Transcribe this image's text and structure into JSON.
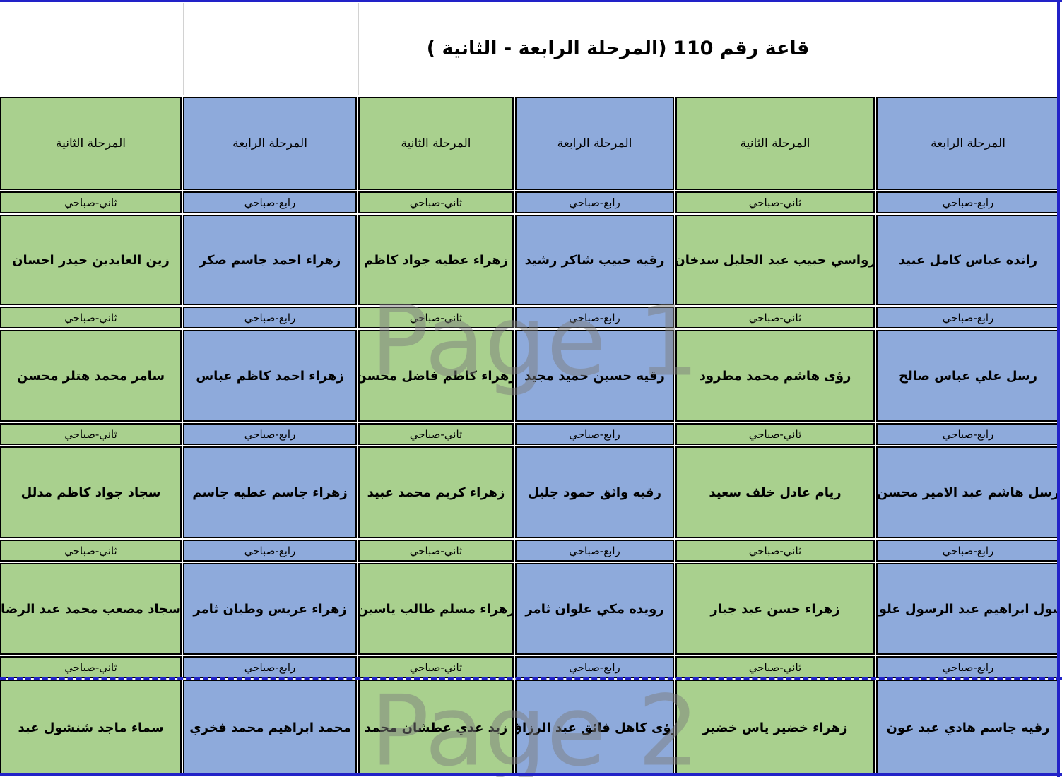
{
  "title": "قاعة رقم 110 (المرحلة الرابعة - الثانية )",
  "watermarks": {
    "page1": "Page 1",
    "page2": "Page 2"
  },
  "colors": {
    "stage2_green": "#A9D08E",
    "stage4_blue": "#8EAADB",
    "page_break_blue": "#2222C8",
    "gridline_gray": "#D2D2D2",
    "cell_border": "#000000"
  },
  "columns": [
    {
      "stage": "المرحلة الثانية",
      "session": "ثاني-صباحي",
      "color": "green",
      "students": [
        "زين العابدين حيدر احسان",
        "سامر محمد هتلر محسن",
        "سجاد جواد كاظم مدلل",
        "سجاد مصعب محمد عبد الرضا",
        "سماء ماجد شنشول عبد"
      ]
    },
    {
      "stage": "المرحلة الرابعة",
      "session": "رابع-صباحي",
      "color": "blue",
      "students": [
        "زهراء احمد جاسم صكر",
        "زهراء احمد كاظم عباس",
        "زهراء جاسم عطيه جاسم",
        "زهراء عريس وطبان ثامر",
        "ء محمد ابراهيم محمد فخري ر"
      ]
    },
    {
      "stage": "المرحلة الثانية",
      "session": "ثاني-صباحي",
      "color": "green",
      "students": [
        "زهراء عطيه جواد كاظم",
        "زهراء كاظم فاضل محسن",
        "زهراء كريم محمد عبيد",
        "زهراء مسلم طالب ياسين",
        "زيد عدي عطشان محمد"
      ]
    },
    {
      "stage": "المرحلة الرابعة",
      "session": "رابع-صباحي",
      "color": "blue",
      "students": [
        "رقيه حبيب شاكر رشيد",
        "رقيه حسين حميد مجيد",
        "رقيه واثق حمود جليل",
        "رويده مكي علوان ثامر",
        "رؤى كاهل فائق عبد الرزاق"
      ]
    },
    {
      "stage": "المرحلة الثانية",
      "session": "ثاني-صباحي",
      "color": "green",
      "students": [
        "رواسي حبيب عبد الجليل سدخان",
        "رؤى هاشم محمد مطرود",
        "ريام عادل خلف سعيد",
        "زهراء حسن عبد جبار",
        "زهراء خضير ياس خضير"
      ]
    },
    {
      "stage": "المرحلة الرابعة",
      "session": "رابع-صباحي",
      "color": "blue",
      "students": [
        "رانده عباس كامل عبيد",
        "رسل علي عباس صالح",
        "رسل هاشم عبد الامير محسن",
        "رسول ابراهيم عبد الرسول علوان",
        "رقيه جاسم هادي عبد عون"
      ]
    }
  ]
}
